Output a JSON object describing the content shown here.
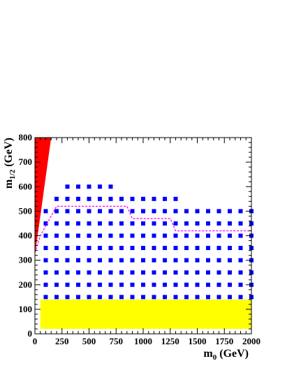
{
  "chart_data": {
    "type": "scatter",
    "xlabel": {
      "main": "m",
      "sub": "0",
      "unit": " (GeV)"
    },
    "ylabel": {
      "main": "m",
      "sub": "1/2",
      "unit": " (GeV)"
    },
    "xlim": [
      0,
      2000
    ],
    "ylim": [
      0,
      800
    ],
    "x_ticks": [
      "0",
      "250",
      "500",
      "750",
      "1000",
      "1250",
      "1500",
      "1750",
      "2000"
    ],
    "y_ticks": [
      "0",
      "100",
      "200",
      "300",
      "400",
      "500",
      "600",
      "700",
      "800"
    ],
    "grid": false,
    "colors": {
      "points": "#0000ff",
      "excluded_triangle": "#ff0000",
      "excluded_band": "#ffff00",
      "contour": "#ff00ff"
    },
    "point_columns": [
      {
        "x": 100,
        "y_min": 150,
        "y_max": 500
      },
      {
        "x": 200,
        "y_min": 150,
        "y_max": 550
      },
      {
        "x": 300,
        "y_min": 150,
        "y_max": 600
      },
      {
        "x": 400,
        "y_min": 150,
        "y_max": 600
      },
      {
        "x": 500,
        "y_min": 150,
        "y_max": 600
      },
      {
        "x": 600,
        "y_min": 150,
        "y_max": 600
      },
      {
        "x": 700,
        "y_min": 150,
        "y_max": 600
      },
      {
        "x": 800,
        "y_min": 150,
        "y_max": 550
      },
      {
        "x": 900,
        "y_min": 150,
        "y_max": 550
      },
      {
        "x": 1000,
        "y_min": 150,
        "y_max": 550
      },
      {
        "x": 1100,
        "y_min": 150,
        "y_max": 550
      },
      {
        "x": 1200,
        "y_min": 150,
        "y_max": 550
      },
      {
        "x": 1300,
        "y_min": 150,
        "y_max": 550
      },
      {
        "x": 1400,
        "y_min": 150,
        "y_max": 500
      },
      {
        "x": 1500,
        "y_min": 150,
        "y_max": 500
      },
      {
        "x": 1600,
        "y_min": 150,
        "y_max": 500
      },
      {
        "x": 1700,
        "y_min": 150,
        "y_max": 500
      },
      {
        "x": 1800,
        "y_min": 150,
        "y_max": 500
      },
      {
        "x": 1900,
        "y_min": 150,
        "y_max": 500
      },
      {
        "x": 2000,
        "y_min": 150,
        "y_max": 500
      }
    ],
    "excluded_triangle": [
      [
        0,
        320
      ],
      [
        0,
        800
      ],
      [
        150,
        800
      ]
    ],
    "excluded_band": {
      "x": [
        50,
        2000
      ],
      "y": [
        20,
        140
      ]
    },
    "contour": [
      [
        0,
        330
      ],
      [
        50,
        400
      ],
      [
        100,
        440
      ],
      [
        200,
        520
      ],
      [
        850,
        520
      ],
      [
        900,
        470
      ],
      [
        1250,
        470
      ],
      [
        1300,
        420
      ],
      [
        2000,
        420
      ]
    ]
  }
}
